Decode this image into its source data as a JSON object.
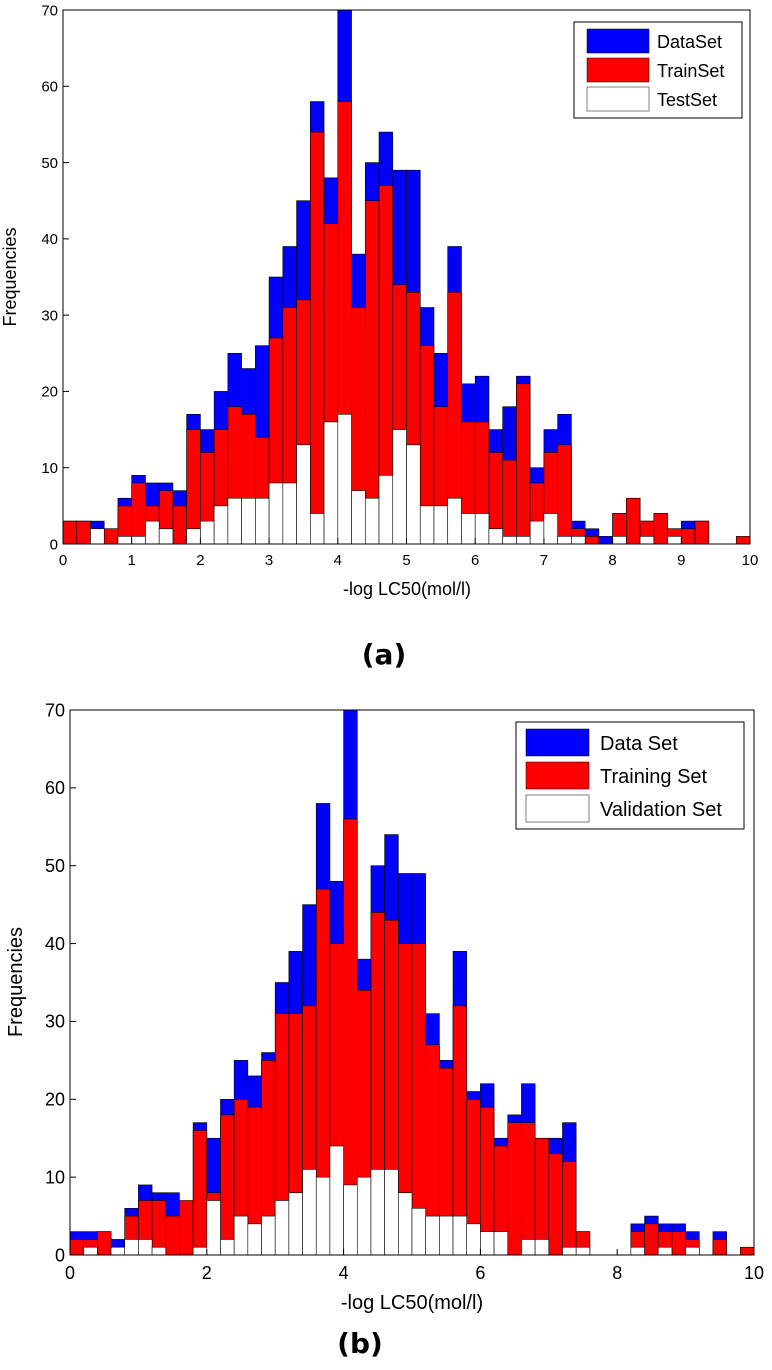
{
  "chart_data": [
    {
      "type": "bar",
      "panel_label": "(a)",
      "xlabel": "-log LC50(mol/l)",
      "ylabel": "Frequencies",
      "xlim": [
        0,
        10
      ],
      "ylim": [
        0,
        70
      ],
      "xticks": [
        0,
        1,
        2,
        3,
        4,
        5,
        6,
        7,
        8,
        9,
        10
      ],
      "yticks": [
        0,
        10,
        20,
        30,
        40,
        50,
        60,
        70
      ],
      "xtick_labels": [
        "0",
        "1",
        "2",
        "3",
        "4",
        "5",
        "6",
        "7",
        "8",
        "9",
        "10"
      ],
      "ytick_labels": [
        "0",
        "10",
        "20",
        "30",
        "40",
        "50",
        "60",
        "70"
      ],
      "bin_width": 0.2,
      "grid": false,
      "legend_position": "top-right",
      "x": [
        0.1,
        0.3,
        0.5,
        0.7,
        0.9,
        1.1,
        1.3,
        1.5,
        1.7,
        1.9,
        2.1,
        2.3,
        2.5,
        2.7,
        2.9,
        3.1,
        3.3,
        3.5,
        3.7,
        3.9,
        4.1,
        4.3,
        4.5,
        4.7,
        4.9,
        5.1,
        5.3,
        5.5,
        5.7,
        5.9,
        6.1,
        6.3,
        6.5,
        6.7,
        6.9,
        7.1,
        7.3,
        7.5,
        7.7,
        7.9,
        8.1,
        8.3,
        8.5,
        8.7,
        8.9,
        9.1,
        9.3,
        9.5,
        9.7,
        9.9
      ],
      "series": [
        {
          "name": "DataSet",
          "color": "#0000ff",
          "values": [
            3,
            3,
            3,
            2,
            6,
            9,
            8,
            8,
            7,
            17,
            15,
            20,
            25,
            23,
            26,
            35,
            39,
            45,
            58,
            48,
            70,
            38,
            50,
            54,
            49,
            49,
            31,
            25,
            39,
            21,
            22,
            15,
            18,
            22,
            10,
            15,
            17,
            3,
            2,
            1,
            4,
            6,
            3,
            4,
            2,
            3,
            3,
            0,
            0,
            0
          ]
        },
        {
          "name": "TrainSet",
          "color": "#ff0000",
          "values": [
            3,
            3,
            2,
            2,
            5,
            8,
            5,
            7,
            5,
            15,
            12,
            15,
            18,
            17,
            14,
            27,
            31,
            32,
            54,
            42,
            58,
            31,
            45,
            47,
            34,
            33,
            26,
            18,
            33,
            16,
            16,
            12,
            11,
            21,
            8,
            12,
            13,
            2,
            1,
            0,
            4,
            6,
            3,
            4,
            2,
            2,
            3,
            0,
            0,
            1
          ]
        },
        {
          "name": "TestSet",
          "color": "#ffffff",
          "values": [
            0,
            0,
            2,
            0,
            1,
            1,
            3,
            2,
            0,
            2,
            3,
            5,
            6,
            6,
            6,
            8,
            8,
            13,
            4,
            16,
            17,
            7,
            6,
            9,
            15,
            13,
            5,
            5,
            6,
            4,
            4,
            2,
            1,
            1,
            3,
            4,
            1,
            1,
            0,
            0,
            1,
            0,
            1,
            0,
            1,
            0,
            0,
            0,
            0,
            0
          ]
        }
      ]
    },
    {
      "type": "bar",
      "panel_label": "(b)",
      "xlabel": "-log LC50(mol/l)",
      "ylabel": "Frequencies",
      "xlim": [
        0,
        10
      ],
      "ylim": [
        0,
        70
      ],
      "xticks": [
        0,
        2,
        4,
        6,
        8,
        10
      ],
      "yticks": [
        0,
        10,
        20,
        30,
        40,
        50,
        60,
        70
      ],
      "xtick_labels": [
        "0",
        "2",
        "4",
        "6",
        "8",
        "10"
      ],
      "ytick_labels": [
        "0",
        "10",
        "20",
        "30",
        "40",
        "50",
        "60",
        "70"
      ],
      "bin_width": 0.2,
      "grid": false,
      "legend_position": "top-right",
      "x": [
        0.1,
        0.3,
        0.5,
        0.7,
        0.9,
        1.1,
        1.3,
        1.5,
        1.7,
        1.9,
        2.1,
        2.3,
        2.5,
        2.7,
        2.9,
        3.1,
        3.3,
        3.5,
        3.7,
        3.9,
        4.1,
        4.3,
        4.5,
        4.7,
        4.9,
        5.1,
        5.3,
        5.5,
        5.7,
        5.9,
        6.1,
        6.3,
        6.5,
        6.7,
        6.9,
        7.1,
        7.3,
        7.5,
        7.7,
        7.9,
        8.1,
        8.3,
        8.5,
        8.7,
        8.9,
        9.1,
        9.3,
        9.5,
        9.7,
        9.9
      ],
      "series": [
        {
          "name": "Data Set",
          "color": "#0000ff",
          "values": [
            3,
            3,
            3,
            2,
            6,
            9,
            8,
            8,
            2,
            17,
            15,
            20,
            25,
            23,
            26,
            35,
            39,
            45,
            58,
            48,
            70,
            38,
            50,
            54,
            49,
            49,
            31,
            25,
            39,
            21,
            22,
            15,
            18,
            22,
            10,
            15,
            17,
            3,
            0,
            0,
            0,
            4,
            5,
            4,
            4,
            3,
            0,
            3,
            0,
            0
          ]
        },
        {
          "name": "Training Set",
          "color": "#ff0000",
          "values": [
            2,
            2,
            3,
            0,
            5,
            7,
            7,
            5,
            7,
            16,
            8,
            18,
            20,
            19,
            25,
            31,
            31,
            32,
            47,
            40,
            56,
            34,
            44,
            43,
            40,
            40,
            27,
            24,
            32,
            20,
            19,
            14,
            17,
            17,
            15,
            13,
            12,
            3,
            0,
            0,
            0,
            3,
            4,
            3,
            3,
            2,
            0,
            2,
            0,
            1
          ]
        },
        {
          "name": "Validation Set",
          "color": "#ffffff",
          "values": [
            0,
            1,
            0,
            1,
            2,
            2,
            1,
            0,
            0,
            1,
            7,
            2,
            5,
            4,
            5,
            7,
            8,
            11,
            10,
            14,
            9,
            10,
            11,
            11,
            8,
            6,
            5,
            5,
            5,
            4,
            3,
            3,
            0,
            2,
            2,
            0,
            1,
            1,
            0,
            0,
            0,
            1,
            0,
            1,
            0,
            1,
            0,
            0,
            0,
            0
          ]
        }
      ]
    }
  ]
}
